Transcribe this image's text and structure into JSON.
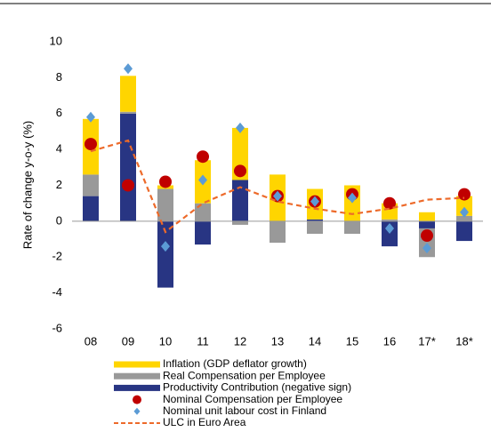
{
  "chart_data": {
    "type": "bar",
    "y_label": "Rate of change y-o-y (%)",
    "categories": [
      "08",
      "09",
      "10",
      "11",
      "12",
      "13",
      "14",
      "15",
      "16",
      "17*",
      "18*"
    ],
    "ylim": [
      -6,
      10
    ],
    "yticks": [
      -6,
      -4,
      -2,
      0,
      2,
      4,
      6,
      8,
      10
    ],
    "series": [
      {
        "name": "Inflation (GDP deflator growth)",
        "type": "bar",
        "color": "#ffd500",
        "values": [
          3.1,
          2.0,
          0.2,
          2.4,
          2.9,
          2.6,
          1.7,
          2.0,
          0.9,
          0.5,
          1.1
        ]
      },
      {
        "name": "Real Compensation per Employee",
        "type": "bar",
        "color": "#999999",
        "values": [
          1.2,
          0.1,
          1.8,
          1.0,
          -0.2,
          -1.2,
          -0.7,
          -0.7,
          0.1,
          -1.6,
          0.3
        ]
      },
      {
        "name": "Productivity Contribution (negative sign)",
        "type": "bar",
        "color": "#283583",
        "values": [
          1.4,
          6.0,
          -3.7,
          -1.3,
          2.3,
          0.0,
          0.1,
          0.0,
          -1.4,
          -0.4,
          -1.1
        ]
      },
      {
        "name": "Nominal Compensation per Employee",
        "type": "scatter",
        "marker": "circle",
        "color": "#c00000",
        "values": [
          4.3,
          2.0,
          2.2,
          3.6,
          2.8,
          1.4,
          1.1,
          1.5,
          1.0,
          -0.8,
          1.5
        ]
      },
      {
        "name": "Nominal unit labour cost in Finland",
        "type": "scatter",
        "marker": "diamond",
        "color": "#5b9bd5",
        "values": [
          5.8,
          8.5,
          -1.4,
          2.3,
          5.2,
          1.4,
          1.1,
          1.3,
          -0.4,
          -1.5,
          0.5
        ]
      },
      {
        "name": "ULC in Euro Area",
        "type": "line",
        "dashed": true,
        "color": "#ed6a2a",
        "values": [
          3.9,
          4.5,
          -0.6,
          1.0,
          1.9,
          1.1,
          0.7,
          0.4,
          0.7,
          1.2,
          1.3
        ]
      }
    ]
  }
}
